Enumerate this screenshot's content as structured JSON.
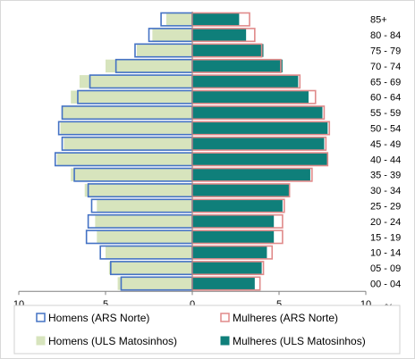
{
  "chart_data": {
    "type": "bar",
    "orientation": "horizontal-population-pyramid",
    "categories": [
      "00 - 04",
      "05 - 09",
      "10 - 14",
      "15 - 19",
      "20 - 24",
      "25 - 29",
      "30 - 34",
      "35 - 39",
      "40 - 44",
      "45 - 49",
      "50 - 54",
      "55 - 59",
      "60 - 64",
      "65 - 69",
      "70 - 74",
      "75 - 79",
      "80 - 84",
      "85+"
    ],
    "series": [
      {
        "name": "Homens (ARS Norte)",
        "side": "left",
        "style": "outline",
        "color": "#4472c4",
        "values": [
          4.1,
          4.7,
          5.3,
          6.1,
          6.0,
          5.8,
          6.0,
          6.8,
          7.9,
          7.5,
          7.7,
          7.5,
          6.6,
          5.9,
          4.4,
          3.3,
          2.5,
          1.8
        ]
      },
      {
        "name": "Mulheres (ARS Norte)",
        "side": "right",
        "style": "outline",
        "color": "#e08a8a",
        "values": [
          3.9,
          4.1,
          4.6,
          5.2,
          5.2,
          5.3,
          5.6,
          6.9,
          7.8,
          7.7,
          7.9,
          7.6,
          7.1,
          6.2,
          5.1,
          4.0,
          3.6,
          3.3
        ]
      },
      {
        "name": "Homens (ULS Matosinhos)",
        "side": "left",
        "style": "fill",
        "color": "#d7e4bd",
        "values": [
          4.3,
          4.8,
          5.0,
          5.5,
          5.6,
          5.5,
          6.2,
          7.0,
          7.8,
          7.4,
          7.6,
          7.5,
          7.0,
          6.5,
          5.0,
          3.2,
          2.3,
          1.5
        ]
      },
      {
        "name": "Mulheres (ULS Matosinhos)",
        "side": "right",
        "style": "fill",
        "color": "#0f7f7a",
        "values": [
          3.6,
          4.0,
          4.3,
          4.7,
          4.7,
          5.2,
          5.6,
          6.8,
          7.8,
          7.6,
          7.8,
          7.5,
          6.7,
          6.1,
          5.2,
          4.1,
          3.1,
          2.7
        ]
      }
    ],
    "xticks": [
      "10",
      "5",
      "0",
      "5",
      "10"
    ],
    "xlabel": "%",
    "xlim": [
      -10,
      10
    ],
    "grid": false,
    "legend_position": "bottom"
  }
}
